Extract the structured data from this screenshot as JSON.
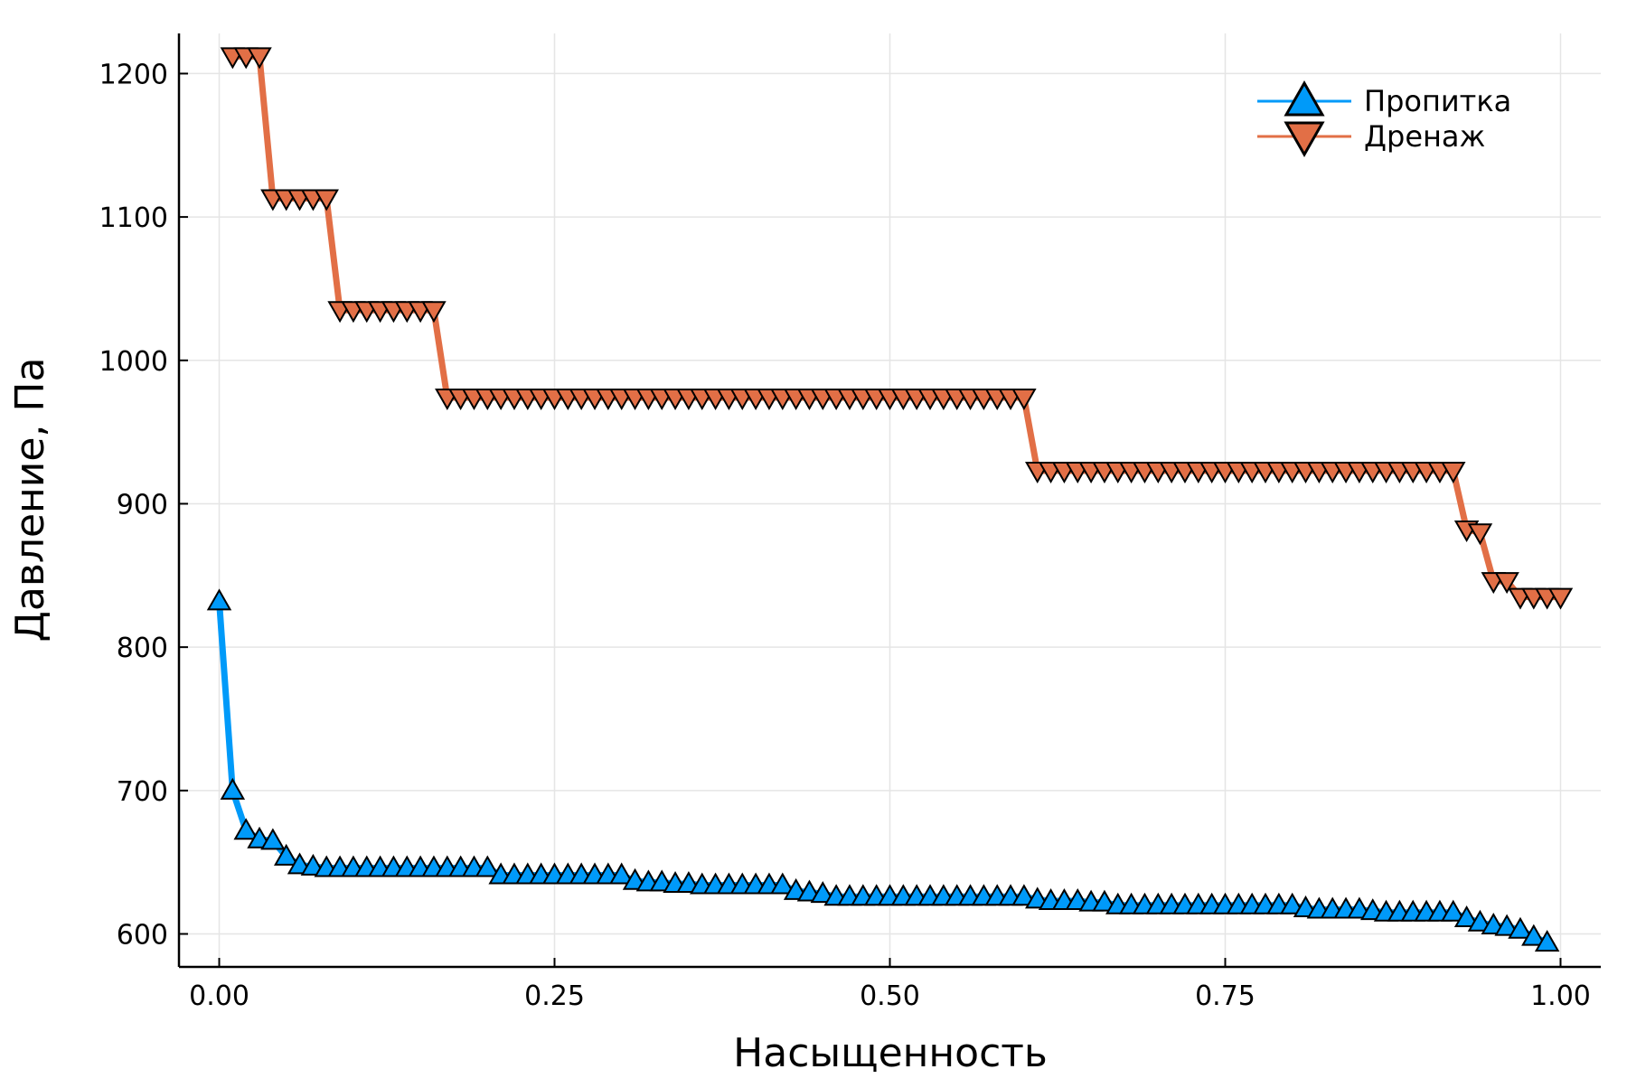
{
  "chart_data": {
    "type": "line",
    "x_label": "Насыщенность",
    "y_label": "Давление, Па",
    "xlim": [
      -0.03,
      1.03
    ],
    "ylim": [
      577,
      1228
    ],
    "xticks": [
      {
        "value": 0,
        "label": "0.00"
      },
      {
        "value": 0.25,
        "label": "0.25"
      },
      {
        "value": 0.5,
        "label": "0.50"
      },
      {
        "value": 0.75,
        "label": "0.75"
      },
      {
        "value": 1,
        "label": "1.00"
      }
    ],
    "yticks": [
      600,
      700,
      800,
      900,
      1000,
      1100,
      1200
    ],
    "grid": true,
    "legend": "top-right",
    "series": [
      {
        "name": "Пропитка",
        "color": "#009af9",
        "marker": "triangle-up",
        "x": [
          0,
          0.01,
          0.02,
          0.03,
          0.04,
          0.05,
          0.06,
          0.07,
          0.08,
          0.09,
          0.1,
          0.11,
          0.12,
          0.13,
          0.14,
          0.15,
          0.16,
          0.17,
          0.18,
          0.19,
          0.2,
          0.21,
          0.22,
          0.23,
          0.24,
          0.25,
          0.26,
          0.27,
          0.28,
          0.29,
          0.3,
          0.31,
          0.32,
          0.33,
          0.34,
          0.35,
          0.36,
          0.37,
          0.38,
          0.39,
          0.4,
          0.41,
          0.42,
          0.43,
          0.44,
          0.45,
          0.46,
          0.47,
          0.48,
          0.49,
          0.5,
          0.51,
          0.52,
          0.53,
          0.54,
          0.55,
          0.56,
          0.57,
          0.58,
          0.59,
          0.6,
          0.61,
          0.62,
          0.63,
          0.64,
          0.65,
          0.66,
          0.67,
          0.68,
          0.69,
          0.7,
          0.71,
          0.72,
          0.73,
          0.74,
          0.75,
          0.76,
          0.77,
          0.78,
          0.79,
          0.8,
          0.81,
          0.82,
          0.83,
          0.84,
          0.85,
          0.86,
          0.87,
          0.88,
          0.89,
          0.9,
          0.91,
          0.92,
          0.93,
          0.94,
          0.95,
          0.96,
          0.97,
          0.98,
          0.99
        ],
        "values": [
          832,
          700,
          672,
          666,
          665,
          654,
          648,
          647,
          646,
          646,
          646,
          646,
          646,
          646,
          646,
          646,
          646,
          646,
          646,
          646,
          646,
          641,
          641,
          641,
          641,
          641,
          641,
          641,
          641,
          641,
          641,
          637,
          636,
          636,
          635,
          635,
          634,
          634,
          634,
          634,
          634,
          634,
          634,
          630,
          629,
          628,
          626,
          626,
          626,
          626,
          626,
          626,
          626,
          626,
          626,
          626,
          626,
          626,
          626,
          626,
          626,
          624,
          623,
          623,
          623,
          622,
          622,
          620,
          620,
          620,
          620,
          620,
          620,
          620,
          620,
          620,
          620,
          620,
          620,
          620,
          620,
          618,
          617,
          617,
          617,
          617,
          616,
          615,
          615,
          615,
          615,
          615,
          615,
          611,
          608,
          606,
          605,
          603,
          598,
          594
        ]
      },
      {
        "name": "Дренаж",
        "color": "#e26f46",
        "marker": "triangle-down",
        "x": [
          0.01,
          0.02,
          0.03,
          0.04,
          0.05,
          0.06,
          0.07,
          0.08,
          0.09,
          0.1,
          0.11,
          0.12,
          0.13,
          0.14,
          0.15,
          0.16,
          0.17,
          0.18,
          0.19,
          0.2,
          0.21,
          0.22,
          0.23,
          0.24,
          0.25,
          0.26,
          0.27,
          0.28,
          0.29,
          0.3,
          0.31,
          0.32,
          0.33,
          0.34,
          0.35,
          0.36,
          0.37,
          0.38,
          0.39,
          0.4,
          0.41,
          0.42,
          0.43,
          0.44,
          0.45,
          0.46,
          0.47,
          0.48,
          0.49,
          0.5,
          0.51,
          0.52,
          0.53,
          0.54,
          0.55,
          0.56,
          0.57,
          0.58,
          0.59,
          0.6,
          0.61,
          0.62,
          0.63,
          0.64,
          0.65,
          0.66,
          0.67,
          0.68,
          0.69,
          0.7,
          0.71,
          0.72,
          0.73,
          0.74,
          0.75,
          0.76,
          0.77,
          0.78,
          0.79,
          0.8,
          0.81,
          0.82,
          0.83,
          0.84,
          0.85,
          0.86,
          0.87,
          0.88,
          0.89,
          0.9,
          0.91,
          0.92,
          0.93,
          0.94,
          0.95,
          0.96,
          0.97,
          0.98,
          0.99,
          1
        ],
        "values": [
          1212,
          1212,
          1212,
          1113,
          1113,
          1113,
          1113,
          1113,
          1035,
          1035,
          1035,
          1035,
          1035,
          1035,
          1035,
          1035,
          974,
          974,
          974,
          974,
          974,
          974,
          974,
          974,
          974,
          974,
          974,
          974,
          974,
          974,
          974,
          974,
          974,
          974,
          974,
          974,
          974,
          974,
          974,
          974,
          974,
          974,
          974,
          974,
          974,
          974,
          974,
          974,
          974,
          974,
          974,
          974,
          974,
          974,
          974,
          974,
          974,
          974,
          974,
          974,
          923,
          923,
          923,
          923,
          923,
          923,
          923,
          923,
          923,
          923,
          923,
          923,
          923,
          923,
          923,
          923,
          923,
          923,
          923,
          923,
          923,
          923,
          923,
          923,
          923,
          923,
          923,
          923,
          923,
          923,
          923,
          923,
          882,
          880,
          846,
          846,
          835,
          835,
          835,
          835
        ]
      }
    ]
  }
}
